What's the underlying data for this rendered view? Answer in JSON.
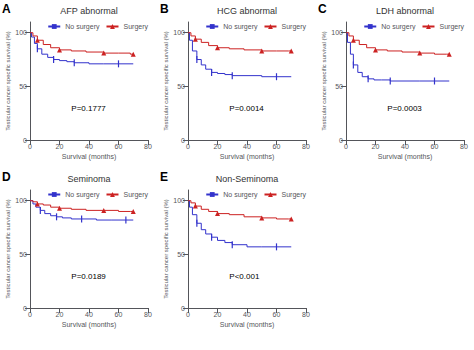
{
  "chart_data": [
    {
      "type": "step",
      "title": "AFP abnormal",
      "annotations": [
        "A",
        "P=0.1777"
      ],
      "xlabel": "Survival (months)",
      "ylabel": "Testicular cancer specific survival (%)",
      "series": [
        {
          "name": "No surgery",
          "color": "#3333CC",
          "marker": "vline",
          "x": [
            0,
            1,
            3,
            5,
            8,
            12,
            16,
            20,
            25,
            30,
            40,
            50,
            60,
            70
          ],
          "values": [
            100,
            96,
            90,
            85,
            80,
            77,
            75,
            74,
            73,
            72,
            71,
            71,
            71,
            71
          ]
        },
        {
          "name": "Surgery",
          "color": "#CC2222",
          "marker": "triangle",
          "x": [
            0,
            2,
            5,
            9,
            14,
            20,
            28,
            38,
            50,
            60,
            68,
            70
          ],
          "values": [
            100,
            97,
            93,
            89,
            86,
            84,
            83,
            82,
            81,
            81,
            80,
            80
          ]
        }
      ],
      "xlim": [
        0,
        80
      ],
      "xticks": [
        0,
        20,
        40,
        60,
        80
      ],
      "ylim": [
        0,
        110
      ],
      "yticks": [
        0,
        50,
        100
      ],
      "grid": false,
      "legend": "upper right"
    },
    {
      "type": "step",
      "title": "HCG abnormal",
      "annotations": [
        "B",
        "P=0.0014"
      ],
      "xlabel": "Survival (months)",
      "ylabel": "Testicular cancer specific survival (%)",
      "series": [
        {
          "name": "No surgery",
          "color": "#3333CC",
          "marker": "vline",
          "x": [
            0,
            1,
            3,
            6,
            9,
            12,
            16,
            20,
            25,
            30,
            40,
            50,
            60,
            70
          ],
          "values": [
            100,
            93,
            83,
            75,
            70,
            66,
            63,
            62,
            61,
            60,
            60,
            59,
            59,
            59
          ]
        },
        {
          "name": "Surgery",
          "color": "#CC2222",
          "marker": "triangle",
          "x": [
            0,
            2,
            5,
            9,
            14,
            20,
            28,
            38,
            50,
            60,
            68,
            70
          ],
          "values": [
            100,
            97,
            94,
            91,
            88,
            86,
            85,
            84,
            83,
            83,
            83,
            83
          ]
        }
      ],
      "xlim": [
        0,
        80
      ],
      "xticks": [
        0,
        20,
        40,
        60,
        80
      ],
      "ylim": [
        0,
        110
      ],
      "yticks": [
        0,
        50,
        100
      ],
      "grid": false,
      "legend": "upper right"
    },
    {
      "type": "step",
      "title": "LDH abnormal",
      "annotations": [
        "C",
        "P=0.0003"
      ],
      "xlabel": "Survival (months)",
      "ylabel": "Testicular cancer specific survival (%)",
      "series": [
        {
          "name": "No surgery",
          "color": "#3333CC",
          "marker": "vline",
          "x": [
            0,
            1,
            3,
            5,
            8,
            11,
            15,
            19,
            24,
            30,
            40,
            50,
            60,
            70
          ],
          "values": [
            100,
            91,
            80,
            70,
            63,
            59,
            57,
            56,
            56,
            55,
            55,
            55,
            55,
            55
          ]
        },
        {
          "name": "Surgery",
          "color": "#CC2222",
          "marker": "triangle",
          "x": [
            0,
            2,
            5,
            9,
            14,
            20,
            28,
            38,
            50,
            60,
            68,
            70
          ],
          "values": [
            100,
            97,
            93,
            89,
            86,
            84,
            83,
            82,
            81,
            80,
            80,
            80
          ]
        }
      ],
      "xlim": [
        0,
        80
      ],
      "xticks": [
        0,
        20,
        40,
        60,
        80
      ],
      "ylim": [
        0,
        110
      ],
      "yticks": [
        0,
        50,
        100
      ],
      "grid": false,
      "legend": "upper right"
    },
    {
      "type": "step",
      "title": "Seminoma",
      "annotations": [
        "D",
        "P=0.0189"
      ],
      "xlabel": "Survival (months)",
      "ylabel": "Testicular cancer specific survival (%)",
      "series": [
        {
          "name": "No surgery",
          "color": "#3333CC",
          "marker": "vline",
          "x": [
            0,
            2,
            4,
            7,
            10,
            14,
            18,
            22,
            28,
            35,
            45,
            55,
            65,
            70
          ],
          "values": [
            100,
            97,
            94,
            91,
            88,
            86,
            85,
            84,
            83,
            83,
            82,
            82,
            82,
            82
          ]
        },
        {
          "name": "Surgery",
          "color": "#CC2222",
          "marker": "triangle",
          "x": [
            0,
            2,
            5,
            9,
            14,
            20,
            28,
            38,
            50,
            60,
            68,
            70
          ],
          "values": [
            100,
            99,
            97,
            96,
            94,
            93,
            92,
            91,
            91,
            90,
            90,
            90
          ]
        }
      ],
      "xlim": [
        0,
        80
      ],
      "xticks": [
        0,
        20,
        40,
        60,
        80
      ],
      "ylim": [
        0,
        110
      ],
      "yticks": [
        0,
        50,
        100
      ],
      "grid": false,
      "legend": "upper right"
    },
    {
      "type": "step",
      "title": "Non-Seminoma",
      "annotations": [
        "E",
        "P<0.001"
      ],
      "xlabel": "Survival (months)",
      "ylabel": "Testicular cancer specific survival (%)",
      "series": [
        {
          "name": "No surgery",
          "color": "#3333CC",
          "marker": "vline",
          "x": [
            0,
            1,
            3,
            6,
            9,
            12,
            16,
            20,
            25,
            30,
            40,
            50,
            60,
            70
          ],
          "values": [
            100,
            94,
            87,
            79,
            73,
            69,
            66,
            63,
            61,
            59,
            57,
            57,
            57,
            57
          ]
        },
        {
          "name": "Surgery",
          "color": "#CC2222",
          "marker": "triangle",
          "x": [
            0,
            2,
            5,
            9,
            14,
            20,
            28,
            38,
            50,
            60,
            68,
            70
          ],
          "values": [
            100,
            98,
            95,
            92,
            90,
            88,
            87,
            85,
            84,
            83,
            83,
            83
          ]
        }
      ],
      "xlim": [
        0,
        80
      ],
      "xticks": [
        0,
        20,
        40,
        60,
        80
      ],
      "ylim": [
        0,
        110
      ],
      "yticks": [
        0,
        50,
        100
      ],
      "grid": false,
      "legend": "upper right"
    }
  ]
}
